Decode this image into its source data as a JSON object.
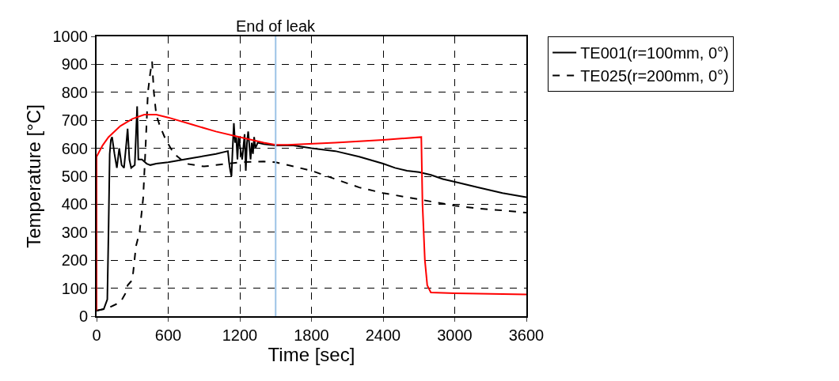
{
  "chart_data": {
    "type": "line",
    "xlabel": "Time [sec]",
    "ylabel": "Temperature [°C]",
    "xlim": [
      0,
      3600
    ],
    "xticks": [
      0,
      600,
      1200,
      1800,
      2400,
      3000,
      3600
    ],
    "ylim": [
      0,
      1000
    ],
    "yticks": [
      0,
      100,
      200,
      300,
      400,
      500,
      600,
      700,
      800,
      900,
      1000
    ],
    "grid": true,
    "legend": "top right",
    "marker": "none",
    "ref_lines": [
      {
        "axis": "x",
        "value": 1500,
        "label": "End of leak",
        "color": "#9dc3e6"
      }
    ],
    "series": [
      {
        "name": "TE001(r=100mm, 0°)",
        "color": "#000000",
        "line_style": "solid",
        "x": [
          0,
          60,
          90,
          100,
          110,
          120,
          130,
          150,
          170,
          190,
          210,
          230,
          250,
          260,
          275,
          290,
          320,
          340,
          350,
          380,
          420,
          450,
          500,
          600,
          800,
          1000,
          1100,
          1110,
          1120,
          1130,
          1140,
          1150,
          1160,
          1170,
          1180,
          1190,
          1200,
          1220,
          1240,
          1250,
          1260,
          1270,
          1290,
          1300,
          1310,
          1320,
          1330,
          1350,
          1400,
          1500,
          1650,
          1800,
          2000,
          2200,
          2400,
          2500,
          2600,
          2700,
          2800,
          2900,
          3000,
          3200,
          3400,
          3600
        ],
        "values": [
          20,
          25,
          60,
          300,
          580,
          630,
          640,
          580,
          530,
          600,
          540,
          530,
          620,
          670,
          560,
          530,
          540,
          750,
          560,
          560,
          545,
          540,
          545,
          550,
          565,
          580,
          590,
          550,
          520,
          500,
          600,
          690,
          620,
          640,
          560,
          640,
          610,
          560,
          650,
          520,
          620,
          660,
          560,
          620,
          580,
          640,
          600,
          620,
          615,
          610,
          610,
          600,
          590,
          570,
          545,
          530,
          520,
          515,
          505,
          490,
          480,
          460,
          440,
          425
        ]
      },
      {
        "name": "TE025(r=200mm, 0°)",
        "color": "#000000",
        "line_style": "dashed",
        "x": [
          0,
          100,
          200,
          240,
          260,
          280,
          300,
          330,
          360,
          390,
          410,
          430,
          450,
          465,
          480,
          500,
          530,
          580,
          650,
          750,
          900,
          1000,
          1100,
          1200,
          1400,
          1500,
          1600,
          1800,
          2000,
          2200,
          2400,
          2600,
          2800,
          3000,
          3200,
          3400,
          3600
        ],
        "values": [
          20,
          30,
          50,
          80,
          110,
          120,
          130,
          250,
          300,
          420,
          600,
          800,
          870,
          910,
          800,
          720,
          680,
          630,
          580,
          545,
          535,
          540,
          545,
          550,
          553,
          550,
          540,
          520,
          490,
          460,
          440,
          425,
          410,
          395,
          385,
          378,
          370
        ]
      },
      {
        "color": "#ff0000",
        "line_style": "solid",
        "x": [
          0,
          0,
          50,
          100,
          200,
          300,
          400,
          500,
          600,
          800,
          1000,
          1200,
          1400,
          1500,
          1600,
          2000,
          2400,
          2720,
          2730,
          2750,
          2770,
          2800,
          3000,
          3600
        ],
        "values": [
          20,
          570,
          610,
          640,
          680,
          705,
          720,
          720,
          710,
          685,
          660,
          640,
          620,
          612,
          612,
          620,
          630,
          640,
          400,
          200,
          110,
          85,
          82,
          78
        ]
      }
    ]
  }
}
